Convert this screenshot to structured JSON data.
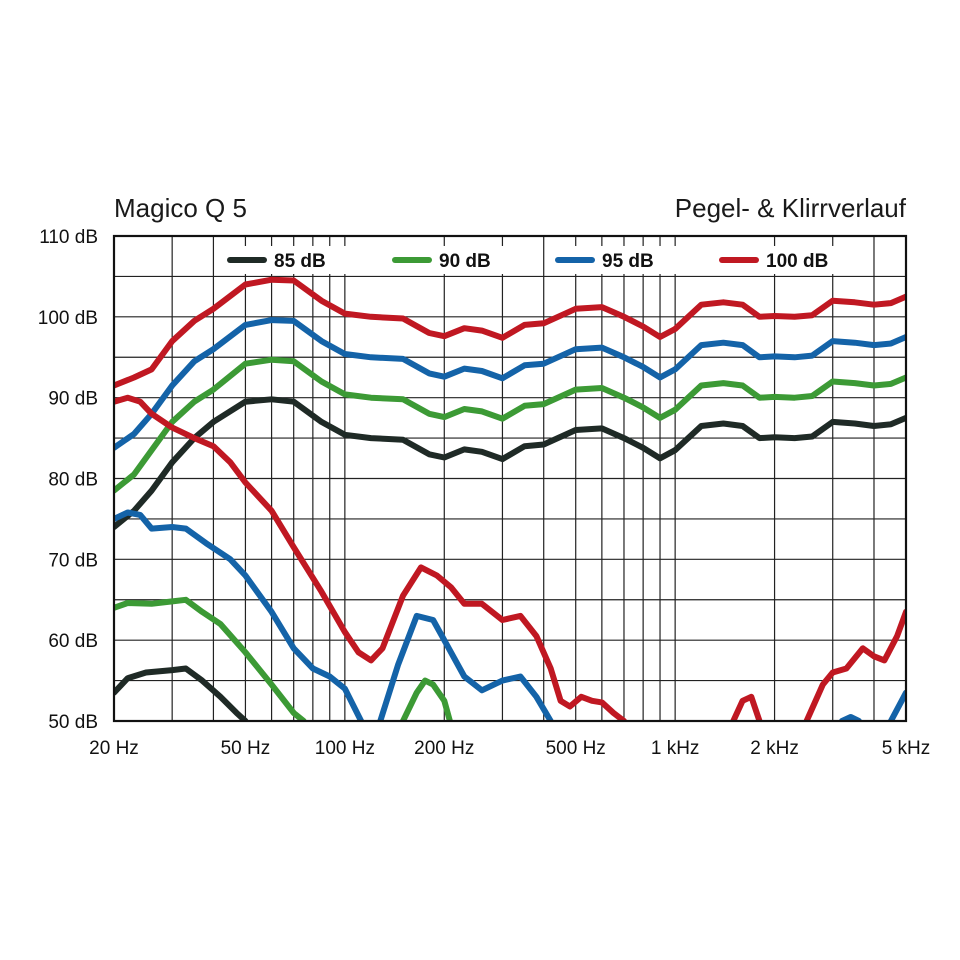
{
  "chart_data": {
    "type": "line",
    "title": "Magico Q 5",
    "subtitle": "Pegel- & Klirrverlauf",
    "xlabel": "",
    "ylabel": "",
    "x_scale": "log",
    "xlim": [
      20,
      5000
    ],
    "ylim": [
      50,
      110
    ],
    "grid": true,
    "legend_placement": "top",
    "x_ticks": [
      {
        "value": 20,
        "label": "20 Hz"
      },
      {
        "value": 50,
        "label": "50 Hz"
      },
      {
        "value": 100,
        "label": "100 Hz"
      },
      {
        "value": 200,
        "label": "200 Hz"
      },
      {
        "value": 500,
        "label": "500 Hz"
      },
      {
        "value": 1000,
        "label": "1 kHz"
      },
      {
        "value": 2000,
        "label": "2 kHz"
      },
      {
        "value": 5000,
        "label": "5 kHz"
      }
    ],
    "y_ticks": [
      {
        "value": 110,
        "label": "110 dB"
      },
      {
        "value": 100,
        "label": "100 dB"
      },
      {
        "value": 90,
        "label": "90 dB"
      },
      {
        "value": 80,
        "label": "80 dB"
      },
      {
        "value": 70,
        "label": "70 dB"
      },
      {
        "value": 60,
        "label": "60 dB"
      },
      {
        "value": 50,
        "label": "50 dB"
      }
    ],
    "series": [
      {
        "name": "85 dB",
        "color": "#1f2a26",
        "kind": "level",
        "points": [
          [
            20,
            74
          ],
          [
            23,
            76
          ],
          [
            26,
            78.5
          ],
          [
            30,
            82
          ],
          [
            35,
            85
          ],
          [
            40,
            87
          ],
          [
            50,
            89.5
          ],
          [
            60,
            89.8
          ],
          [
            70,
            89.5
          ],
          [
            85,
            87
          ],
          [
            100,
            85.4
          ],
          [
            120,
            85
          ],
          [
            150,
            84.8
          ],
          [
            180,
            83
          ],
          [
            200,
            82.6
          ],
          [
            230,
            83.6
          ],
          [
            260,
            83.3
          ],
          [
            300,
            82.4
          ],
          [
            350,
            84
          ],
          [
            400,
            84.2
          ],
          [
            500,
            86
          ],
          [
            600,
            86.2
          ],
          [
            700,
            85
          ],
          [
            800,
            83.8
          ],
          [
            900,
            82.5
          ],
          [
            1000,
            83.5
          ],
          [
            1200,
            86.5
          ],
          [
            1400,
            86.8
          ],
          [
            1600,
            86.5
          ],
          [
            1800,
            85
          ],
          [
            2000,
            85.1
          ],
          [
            2300,
            85
          ],
          [
            2600,
            85.2
          ],
          [
            3000,
            87
          ],
          [
            3500,
            86.8
          ],
          [
            4000,
            86.5
          ],
          [
            4500,
            86.7
          ],
          [
            5000,
            87.5
          ]
        ]
      },
      {
        "name": "90 dB",
        "color": "#3c9a35",
        "kind": "level",
        "points": [
          [
            20,
            78.5
          ],
          [
            23,
            80.5
          ],
          [
            26,
            83.5
          ],
          [
            30,
            87
          ],
          [
            35,
            89.5
          ],
          [
            40,
            91
          ],
          [
            50,
            94.2
          ],
          [
            60,
            94.7
          ],
          [
            70,
            94.5
          ],
          [
            85,
            92
          ],
          [
            100,
            90.4
          ],
          [
            120,
            90
          ],
          [
            150,
            89.8
          ],
          [
            180,
            88
          ],
          [
            200,
            87.6
          ],
          [
            230,
            88.6
          ],
          [
            260,
            88.3
          ],
          [
            300,
            87.4
          ],
          [
            350,
            89
          ],
          [
            400,
            89.2
          ],
          [
            500,
            91
          ],
          [
            600,
            91.2
          ],
          [
            700,
            90
          ],
          [
            800,
            88.8
          ],
          [
            900,
            87.5
          ],
          [
            1000,
            88.5
          ],
          [
            1200,
            91.5
          ],
          [
            1400,
            91.8
          ],
          [
            1600,
            91.5
          ],
          [
            1800,
            90
          ],
          [
            2000,
            90.1
          ],
          [
            2300,
            90
          ],
          [
            2600,
            90.2
          ],
          [
            3000,
            92
          ],
          [
            3500,
            91.8
          ],
          [
            4000,
            91.5
          ],
          [
            4500,
            91.7
          ],
          [
            5000,
            92.5
          ]
        ]
      },
      {
        "name": "95 dB",
        "color": "#1463a8",
        "kind": "level",
        "points": [
          [
            20,
            83.8
          ],
          [
            23,
            85.5
          ],
          [
            26,
            88
          ],
          [
            30,
            91.5
          ],
          [
            35,
            94.5
          ],
          [
            40,
            96
          ],
          [
            50,
            99
          ],
          [
            60,
            99.6
          ],
          [
            70,
            99.5
          ],
          [
            85,
            97
          ],
          [
            100,
            95.4
          ],
          [
            120,
            95
          ],
          [
            150,
            94.8
          ],
          [
            180,
            93
          ],
          [
            200,
            92.6
          ],
          [
            230,
            93.6
          ],
          [
            260,
            93.3
          ],
          [
            300,
            92.4
          ],
          [
            350,
            94
          ],
          [
            400,
            94.2
          ],
          [
            500,
            96
          ],
          [
            600,
            96.2
          ],
          [
            700,
            95
          ],
          [
            800,
            93.8
          ],
          [
            900,
            92.5
          ],
          [
            1000,
            93.5
          ],
          [
            1200,
            96.5
          ],
          [
            1400,
            96.8
          ],
          [
            1600,
            96.5
          ],
          [
            1800,
            95
          ],
          [
            2000,
            95.1
          ],
          [
            2300,
            95
          ],
          [
            2600,
            95.2
          ],
          [
            3000,
            97
          ],
          [
            3500,
            96.8
          ],
          [
            4000,
            96.5
          ],
          [
            4500,
            96.7
          ],
          [
            5000,
            97.5
          ]
        ]
      },
      {
        "name": "100 dB",
        "color": "#c01822",
        "kind": "level",
        "points": [
          [
            20,
            91.5
          ],
          [
            23,
            92.5
          ],
          [
            26,
            93.5
          ],
          [
            30,
            97
          ],
          [
            35,
            99.5
          ],
          [
            40,
            101
          ],
          [
            50,
            104
          ],
          [
            60,
            104.6
          ],
          [
            70,
            104.5
          ],
          [
            85,
            102
          ],
          [
            100,
            100.4
          ],
          [
            120,
            100
          ],
          [
            150,
            99.8
          ],
          [
            180,
            98
          ],
          [
            200,
            97.6
          ],
          [
            230,
            98.6
          ],
          [
            260,
            98.3
          ],
          [
            300,
            97.4
          ],
          [
            350,
            99
          ],
          [
            400,
            99.2
          ],
          [
            500,
            101
          ],
          [
            600,
            101.2
          ],
          [
            700,
            100
          ],
          [
            800,
            98.8
          ],
          [
            900,
            97.5
          ],
          [
            1000,
            98.5
          ],
          [
            1200,
            101.5
          ],
          [
            1400,
            101.8
          ],
          [
            1600,
            101.5
          ],
          [
            1800,
            100
          ],
          [
            2000,
            100.1
          ],
          [
            2300,
            100
          ],
          [
            2600,
            100.2
          ],
          [
            3000,
            102
          ],
          [
            3500,
            101.8
          ],
          [
            4000,
            101.5
          ],
          [
            4500,
            101.7
          ],
          [
            5000,
            102.5
          ]
        ]
      },
      {
        "name": "85 dB",
        "color": "#1f2a26",
        "kind": "distortion",
        "points": [
          [
            20,
            53.5
          ],
          [
            22,
            55.3
          ],
          [
            25,
            56
          ],
          [
            30,
            56.3
          ],
          [
            33,
            56.5
          ],
          [
            37,
            55
          ],
          [
            42,
            53
          ],
          [
            47,
            51
          ],
          [
            50,
            50
          ]
        ]
      },
      {
        "name": "90 dB",
        "color": "#3c9a35",
        "kind": "distortion",
        "points": [
          [
            20,
            64
          ],
          [
            22,
            64.6
          ],
          [
            26,
            64.5
          ],
          [
            30,
            64.8
          ],
          [
            33,
            65
          ],
          [
            37,
            63.5
          ],
          [
            42,
            62
          ],
          [
            50,
            58.5
          ],
          [
            60,
            54.5
          ],
          [
            70,
            51
          ],
          [
            75,
            50
          ]
        ]
      },
      {
        "name": "90 dB",
        "color": "#3c9a35",
        "kind": "distortion",
        "points": [
          [
            150,
            50
          ],
          [
            165,
            53.5
          ],
          [
            175,
            55
          ],
          [
            185,
            54.5
          ],
          [
            200,
            52.5
          ],
          [
            208,
            50
          ]
        ]
      },
      {
        "name": "95 dB",
        "color": "#1463a8",
        "kind": "distortion",
        "points": [
          [
            20,
            75
          ],
          [
            22,
            75.8
          ],
          [
            24,
            75.5
          ],
          [
            26,
            73.8
          ],
          [
            30,
            74
          ],
          [
            33,
            73.8
          ],
          [
            38,
            72
          ],
          [
            45,
            70
          ],
          [
            50,
            68
          ],
          [
            60,
            63.5
          ],
          [
            70,
            59
          ],
          [
            80,
            56.5
          ],
          [
            90,
            55.5
          ],
          [
            100,
            54
          ],
          [
            112,
            50
          ]
        ]
      },
      {
        "name": "95 dB",
        "color": "#1463a8",
        "kind": "distortion",
        "points": [
          [
            128,
            50
          ],
          [
            145,
            57
          ],
          [
            165,
            63
          ],
          [
            185,
            62.5
          ],
          [
            200,
            60
          ],
          [
            230,
            55.5
          ],
          [
            260,
            53.8
          ],
          [
            300,
            55
          ],
          [
            340,
            55.5
          ],
          [
            380,
            53
          ],
          [
            420,
            50
          ]
        ]
      },
      {
        "name": "95 dB",
        "color": "#1463a8",
        "kind": "distortion",
        "points": [
          [
            3200,
            50
          ],
          [
            3400,
            50.5
          ],
          [
            3600,
            50
          ]
        ]
      },
      {
        "name": "95 dB",
        "color": "#1463a8",
        "kind": "distortion",
        "points": [
          [
            4500,
            50
          ],
          [
            5000,
            53.5
          ]
        ]
      },
      {
        "name": "100 dB",
        "color": "#c01822",
        "kind": "distortion",
        "points": [
          [
            20,
            89.5
          ],
          [
            22,
            90
          ],
          [
            24,
            89.5
          ],
          [
            26,
            88
          ],
          [
            30,
            86.3
          ],
          [
            35,
            85
          ],
          [
            40,
            84
          ],
          [
            45,
            82
          ],
          [
            50,
            79.5
          ],
          [
            60,
            76
          ],
          [
            70,
            71.5
          ],
          [
            85,
            66
          ],
          [
            100,
            61
          ],
          [
            110,
            58.5
          ],
          [
            120,
            57.5
          ],
          [
            130,
            59
          ],
          [
            150,
            65.5
          ],
          [
            170,
            69
          ],
          [
            190,
            68
          ],
          [
            210,
            66.5
          ],
          [
            230,
            64.5
          ],
          [
            260,
            64.5
          ],
          [
            300,
            62.5
          ],
          [
            340,
            63
          ],
          [
            380,
            60.5
          ],
          [
            420,
            56.5
          ],
          [
            450,
            52.5
          ],
          [
            480,
            51.8
          ],
          [
            520,
            53
          ],
          [
            560,
            52.5
          ],
          [
            600,
            52.3
          ],
          [
            650,
            51
          ],
          [
            700,
            50
          ]
        ]
      },
      {
        "name": "100 dB",
        "color": "#c01822",
        "kind": "distortion",
        "points": [
          [
            1500,
            50
          ],
          [
            1600,
            52.5
          ],
          [
            1700,
            53
          ],
          [
            1800,
            50
          ]
        ]
      },
      {
        "name": "100 dB",
        "color": "#c01822",
        "kind": "distortion",
        "points": [
          [
            2500,
            50
          ],
          [
            2800,
            54.5
          ],
          [
            3000,
            56
          ],
          [
            3300,
            56.5
          ],
          [
            3700,
            59
          ],
          [
            4000,
            58
          ],
          [
            4300,
            57.5
          ],
          [
            4700,
            60.5
          ],
          [
            5000,
            63.5
          ]
        ]
      }
    ],
    "legend": [
      {
        "label": "85 dB",
        "color": "#1f2a26"
      },
      {
        "label": "90 dB",
        "color": "#3c9a35"
      },
      {
        "label": "95 dB",
        "color": "#1463a8"
      },
      {
        "label": "100 dB",
        "color": "#c01822"
      }
    ]
  }
}
